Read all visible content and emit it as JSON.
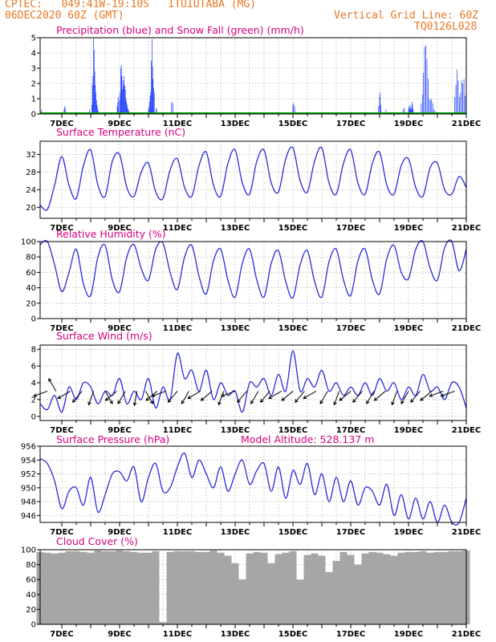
{
  "header": {
    "line1": "CPTEC:   049:41W-19:10S   ITUIUTABA (MG)",
    "line2": "06DEC2020 60Z (GMT)",
    "grid_note": "Vertical Grid Line: 60Z",
    "code": "TQ0126L028",
    "color": "#e87722"
  },
  "colors": {
    "title": "#d6007e",
    "line": "#2b2bd8",
    "precip": "#1f3fff",
    "snow": "#00a000",
    "cloud": "#a6a6a6",
    "arrow": "#000000"
  },
  "x_tick_labels": [
    "7DEC",
    "9DEC",
    "11DEC",
    "13DEC",
    "15DEC",
    "17DEC",
    "19DEC",
    "21DEC"
  ],
  "chart_data": [
    {
      "type": "bar",
      "title": "Precipitation (blue) and Snow Fall (green) (mm/h)",
      "xlabel": "",
      "ylabel": "",
      "ylim": [
        0,
        5
      ],
      "yticks": [
        0,
        1,
        2,
        3,
        4,
        5
      ],
      "x_range_days": [
        6.25,
        21.0
      ],
      "grid": true,
      "series": [
        {
          "name": "Precipitation",
          "color": "#1f3fff",
          "x": [
            6.3,
            7.08,
            7.1,
            7.12,
            7.96,
            8.04,
            8.06,
            8.08,
            8.1,
            8.12,
            8.14,
            8.16,
            8.18,
            8.2,
            8.22,
            8.24,
            8.26,
            8.92,
            8.94,
            8.96,
            9.0,
            9.02,
            9.04,
            9.06,
            9.08,
            9.1,
            9.12,
            9.14,
            9.16,
            9.18,
            9.2,
            9.22,
            9.24,
            9.26,
            9.28,
            9.3,
            9.32,
            10.0,
            10.02,
            10.04,
            10.06,
            10.08,
            10.1,
            10.12,
            10.14,
            10.16,
            10.18,
            10.2,
            10.26,
            10.28,
            10.8,
            10.84,
            15.0,
            15.02,
            15.06,
            17.96,
            18.0,
            18.02,
            18.04,
            18.22,
            18.82,
            18.86,
            19.0,
            19.02,
            19.04,
            19.06,
            19.08,
            19.1,
            19.12,
            19.14,
            19.16,
            19.44,
            19.48,
            19.52,
            19.56,
            19.6,
            19.64,
            19.68,
            19.72,
            19.76,
            19.8,
            19.84,
            19.88,
            19.92,
            20.6,
            20.64,
            20.68,
            20.72,
            20.76,
            20.8,
            20.84,
            20.88,
            20.92,
            20.96
          ],
          "values": [
            0.3,
            0.3,
            0.5,
            0.4,
            0.3,
            0.6,
            1.9,
            2.5,
            5.0,
            4.2,
            2.8,
            1.9,
            1.4,
            0.9,
            0.6,
            0.4,
            0.2,
            0.5,
            0.8,
            1.1,
            0.9,
            1.4,
            3.0,
            3.2,
            2.5,
            1.6,
            2.2,
            1.8,
            2.5,
            1.9,
            1.6,
            1.0,
            0.8,
            0.6,
            0.4,
            0.3,
            0.2,
            0.3,
            0.5,
            0.8,
            1.2,
            1.5,
            3.5,
            4.9,
            3.1,
            2.3,
            1.7,
            1.4,
            0.4,
            0.3,
            0.8,
            0.7,
            0.6,
            0.7,
            0.5,
            0.5,
            1.1,
            1.4,
            0.6,
            0.3,
            0.3,
            0.4,
            0.3,
            0.5,
            0.4,
            0.6,
            0.3,
            0.4,
            0.8,
            0.6,
            0.3,
            0.7,
            1.3,
            2.7,
            4.4,
            4.5,
            3.6,
            2.3,
            1.0,
            0.9,
            1.0,
            0.7,
            0.3,
            0.2,
            1.1,
            1.9,
            2.9,
            2.2,
            1.1,
            1.4,
            2.2,
            2.0,
            2.3,
            1.2
          ]
        },
        {
          "name": "Snow Fall",
          "color": "#00a000",
          "x": [
            6.25,
            21.0
          ],
          "values": [
            0,
            0
          ]
        }
      ]
    },
    {
      "type": "line",
      "title": "Surface Temperature (nC)",
      "xlabel": "",
      "ylabel": "",
      "ylim": [
        17.5,
        35
      ],
      "yticks": [
        20,
        24,
        28,
        32
      ],
      "grid": true,
      "x": [
        6.25,
        6.5,
        6.75,
        7.0,
        7.25,
        7.5,
        7.75,
        8.0,
        8.25,
        8.5,
        8.75,
        9.0,
        9.25,
        9.5,
        9.75,
        10.0,
        10.25,
        10.5,
        10.75,
        11.0,
        11.25,
        11.5,
        11.75,
        12.0,
        12.25,
        12.5,
        12.75,
        13.0,
        13.25,
        13.5,
        13.75,
        14.0,
        14.25,
        14.5,
        14.75,
        15.0,
        15.25,
        15.5,
        15.75,
        16.0,
        16.25,
        16.5,
        16.75,
        17.0,
        17.25,
        17.5,
        17.75,
        18.0,
        18.25,
        18.5,
        18.75,
        19.0,
        19.25,
        19.5,
        19.75,
        20.0,
        20.25,
        20.5,
        20.75,
        21.0
      ],
      "series": [
        {
          "name": "Surface Temperature",
          "values": [
            20.5,
            19.5,
            25.0,
            31.5,
            25.0,
            22.0,
            29.5,
            33.0,
            25.0,
            22.5,
            30.5,
            32.0,
            24.5,
            22.5,
            28.0,
            30.0,
            23.5,
            22.0,
            28.5,
            31.0,
            24.5,
            22.5,
            29.5,
            32.5,
            25.0,
            22.5,
            30.0,
            33.0,
            25.5,
            23.0,
            30.5,
            33.0,
            25.5,
            23.5,
            31.0,
            33.5,
            26.0,
            23.5,
            30.5,
            33.5,
            25.5,
            23.0,
            30.0,
            33.0,
            25.5,
            23.0,
            30.0,
            32.5,
            25.0,
            23.0,
            29.5,
            31.0,
            24.5,
            22.5,
            29.0,
            30.0,
            24.0,
            23.0,
            27.0,
            24.5
          ]
        }
      ]
    },
    {
      "type": "line",
      "title": "Relative Humidity (%)",
      "xlabel": "",
      "ylabel": "",
      "ylim": [
        0,
        100
      ],
      "yticks": [
        0,
        20,
        40,
        60,
        80,
        100
      ],
      "grid": true,
      "x": [
        6.25,
        6.5,
        6.75,
        7.0,
        7.25,
        7.5,
        7.75,
        8.0,
        8.25,
        8.5,
        8.75,
        9.0,
        9.25,
        9.5,
        9.75,
        10.0,
        10.25,
        10.5,
        10.75,
        11.0,
        11.25,
        11.5,
        11.75,
        12.0,
        12.25,
        12.5,
        12.75,
        13.0,
        13.25,
        13.5,
        13.75,
        14.0,
        14.25,
        14.5,
        14.75,
        15.0,
        15.25,
        15.5,
        15.75,
        16.0,
        16.25,
        16.5,
        16.75,
        17.0,
        17.25,
        17.5,
        17.75,
        18.0,
        18.25,
        18.5,
        18.75,
        19.0,
        19.25,
        19.5,
        19.75,
        20.0,
        20.25,
        20.5,
        20.75,
        21.0
      ],
      "series": [
        {
          "name": "Relative Humidity",
          "values": [
            96,
            100,
            70,
            35,
            60,
            90,
            45,
            30,
            80,
            95,
            50,
            35,
            80,
            96,
            65,
            50,
            90,
            98,
            60,
            38,
            80,
            95,
            55,
            32,
            75,
            90,
            50,
            28,
            72,
            90,
            50,
            28,
            72,
            88,
            48,
            27,
            70,
            88,
            48,
            28,
            74,
            90,
            50,
            30,
            75,
            90,
            50,
            32,
            78,
            95,
            60,
            52,
            90,
            100,
            65,
            50,
            92,
            100,
            62,
            90
          ]
        }
      ]
    },
    {
      "type": "line",
      "title": "Surface Wind (m/s)",
      "xlabel": "",
      "ylabel": "",
      "ylim": [
        -0.5,
        8.5
      ],
      "yticks": [
        0,
        2,
        4,
        6,
        8
      ],
      "grid": true,
      "x": [
        6.25,
        6.5,
        6.75,
        7.0,
        7.25,
        7.5,
        7.75,
        8.0,
        8.25,
        8.5,
        8.75,
        9.0,
        9.25,
        9.5,
        9.75,
        10.0,
        10.25,
        10.5,
        10.75,
        11.0,
        11.25,
        11.5,
        11.75,
        12.0,
        12.25,
        12.5,
        12.75,
        13.0,
        13.25,
        13.5,
        13.75,
        14.0,
        14.25,
        14.5,
        14.75,
        15.0,
        15.25,
        15.5,
        15.75,
        16.0,
        16.25,
        16.5,
        16.75,
        17.0,
        17.25,
        17.5,
        17.75,
        18.0,
        18.25,
        18.5,
        18.75,
        19.0,
        19.25,
        19.5,
        19.75,
        20.0,
        20.25,
        20.5,
        20.75,
        21.0
      ],
      "series": [
        {
          "name": "Surface Wind",
          "values": [
            1.5,
            0.8,
            2.5,
            0.5,
            3.5,
            2.0,
            4.0,
            3.5,
            1.5,
            3.0,
            2.5,
            4.5,
            1.5,
            3.0,
            2.0,
            4.5,
            1.0,
            3.5,
            2.0,
            7.5,
            4.5,
            5.5,
            3.0,
            5.5,
            2.0,
            4.0,
            2.5,
            3.0,
            0.5,
            4.0,
            3.5,
            4.5,
            2.5,
            5.0,
            3.0,
            7.8,
            3.0,
            4.5,
            3.5,
            5.5,
            3.0,
            4.0,
            2.5,
            3.5,
            2.5,
            4.0,
            2.5,
            4.5,
            3.0,
            4.0,
            2.0,
            3.5,
            2.5,
            5.0,
            3.0,
            3.5,
            2.0,
            4.0,
            3.5,
            1.0
          ]
        }
      ],
      "arrows_x": [
        6.5,
        6.8,
        7.3,
        7.7,
        8.1,
        8.5,
        8.9,
        9.2,
        9.6,
        9.9,
        10.3,
        10.6,
        11.0,
        11.4,
        11.8,
        12.2,
        12.6,
        13.0,
        13.4,
        13.8,
        14.2,
        14.6,
        15.0,
        15.4,
        15.8,
        16.2,
        16.6,
        17.0,
        17.4,
        17.8,
        18.2,
        18.6,
        19.0,
        19.4,
        19.8,
        20.2,
        20.6
      ],
      "arrows_deg": [
        200,
        120,
        210,
        230,
        250,
        300,
        220,
        240,
        260,
        300,
        220,
        200,
        230,
        240,
        210,
        220,
        250,
        200,
        230,
        240,
        230,
        210,
        220,
        230,
        210,
        240,
        250,
        220,
        230,
        240,
        220,
        250,
        240,
        230,
        220,
        200,
        200
      ]
    },
    {
      "type": "line",
      "title": "Surface Pressure (hPa)",
      "annotation": "Model Altitude: 528.137 m",
      "xlabel": "",
      "ylabel": "",
      "ylim": [
        945,
        956
      ],
      "yticks": [
        946,
        948,
        950,
        952,
        954,
        956
      ],
      "grid": true,
      "x": [
        6.25,
        6.5,
        6.75,
        7.0,
        7.25,
        7.5,
        7.75,
        8.0,
        8.25,
        8.5,
        8.75,
        9.0,
        9.25,
        9.5,
        9.75,
        10.0,
        10.25,
        10.5,
        10.75,
        11.0,
        11.25,
        11.5,
        11.75,
        12.0,
        12.25,
        12.5,
        12.75,
        13.0,
        13.25,
        13.5,
        13.75,
        14.0,
        14.25,
        14.5,
        14.75,
        15.0,
        15.25,
        15.5,
        15.75,
        16.0,
        16.25,
        16.5,
        16.75,
        17.0,
        17.25,
        17.5,
        17.75,
        18.0,
        18.25,
        18.5,
        18.75,
        19.0,
        19.25,
        19.5,
        19.75,
        20.0,
        20.25,
        20.5,
        20.75,
        21.0
      ],
      "series": [
        {
          "name": "Surface Pressure",
          "values": [
            954.2,
            953.5,
            951.0,
            947.0,
            949.5,
            950.0,
            947.5,
            951.5,
            946.5,
            949.0,
            952.0,
            952.3,
            951.0,
            953.0,
            948.0,
            951.5,
            953.5,
            949.5,
            950.0,
            953.0,
            955.0,
            951.5,
            954.0,
            952.0,
            950.0,
            953.0,
            949.5,
            952.0,
            954.0,
            950.5,
            952.5,
            953.5,
            949.5,
            953.0,
            948.5,
            952.5,
            950.5,
            953.5,
            949.0,
            952.0,
            948.0,
            951.5,
            948.0,
            951.0,
            947.5,
            950.0,
            949.5,
            947.5,
            950.5,
            946.0,
            949.0,
            945.5,
            948.5,
            945.5,
            948.0,
            945.0,
            947.5,
            945.0,
            945.0,
            948.5
          ]
        }
      ]
    },
    {
      "type": "bar",
      "title": "Cloud Cover (%)",
      "xlabel": "",
      "ylabel": "",
      "ylim": [
        0,
        100
      ],
      "yticks": [
        0,
        20,
        40,
        60,
        80,
        100
      ],
      "grid": true,
      "x": [
        6.25,
        6.5,
        6.75,
        7.0,
        7.25,
        7.5,
        7.75,
        8.0,
        8.25,
        8.5,
        8.75,
        9.0,
        9.25,
        9.5,
        9.75,
        10.0,
        10.25,
        10.5,
        10.75,
        11.0,
        11.25,
        11.5,
        11.75,
        12.0,
        12.25,
        12.5,
        12.75,
        13.0,
        13.25,
        13.5,
        13.75,
        14.0,
        14.25,
        14.5,
        14.75,
        15.0,
        15.25,
        15.5,
        15.75,
        16.0,
        16.25,
        16.5,
        16.75,
        17.0,
        17.25,
        17.5,
        17.75,
        18.0,
        18.25,
        18.5,
        18.75,
        19.0,
        19.25,
        19.5,
        19.75,
        20.0,
        20.25,
        20.5,
        20.75,
        21.0
      ],
      "series": [
        {
          "name": "Cloud Cover",
          "values": [
            97,
            96,
            95,
            96,
            98,
            98,
            97,
            96,
            99,
            98,
            98,
            99,
            98,
            97,
            96,
            96,
            98,
            3,
            97,
            98,
            98,
            98,
            97,
            97,
            99,
            96,
            92,
            82,
            60,
            95,
            97,
            96,
            82,
            94,
            96,
            98,
            60,
            93,
            95,
            92,
            70,
            85,
            97,
            93,
            80,
            95,
            97,
            96,
            94,
            92,
            96,
            97,
            97,
            98,
            96,
            97,
            97,
            98,
            98,
            99
          ]
        }
      ]
    }
  ]
}
